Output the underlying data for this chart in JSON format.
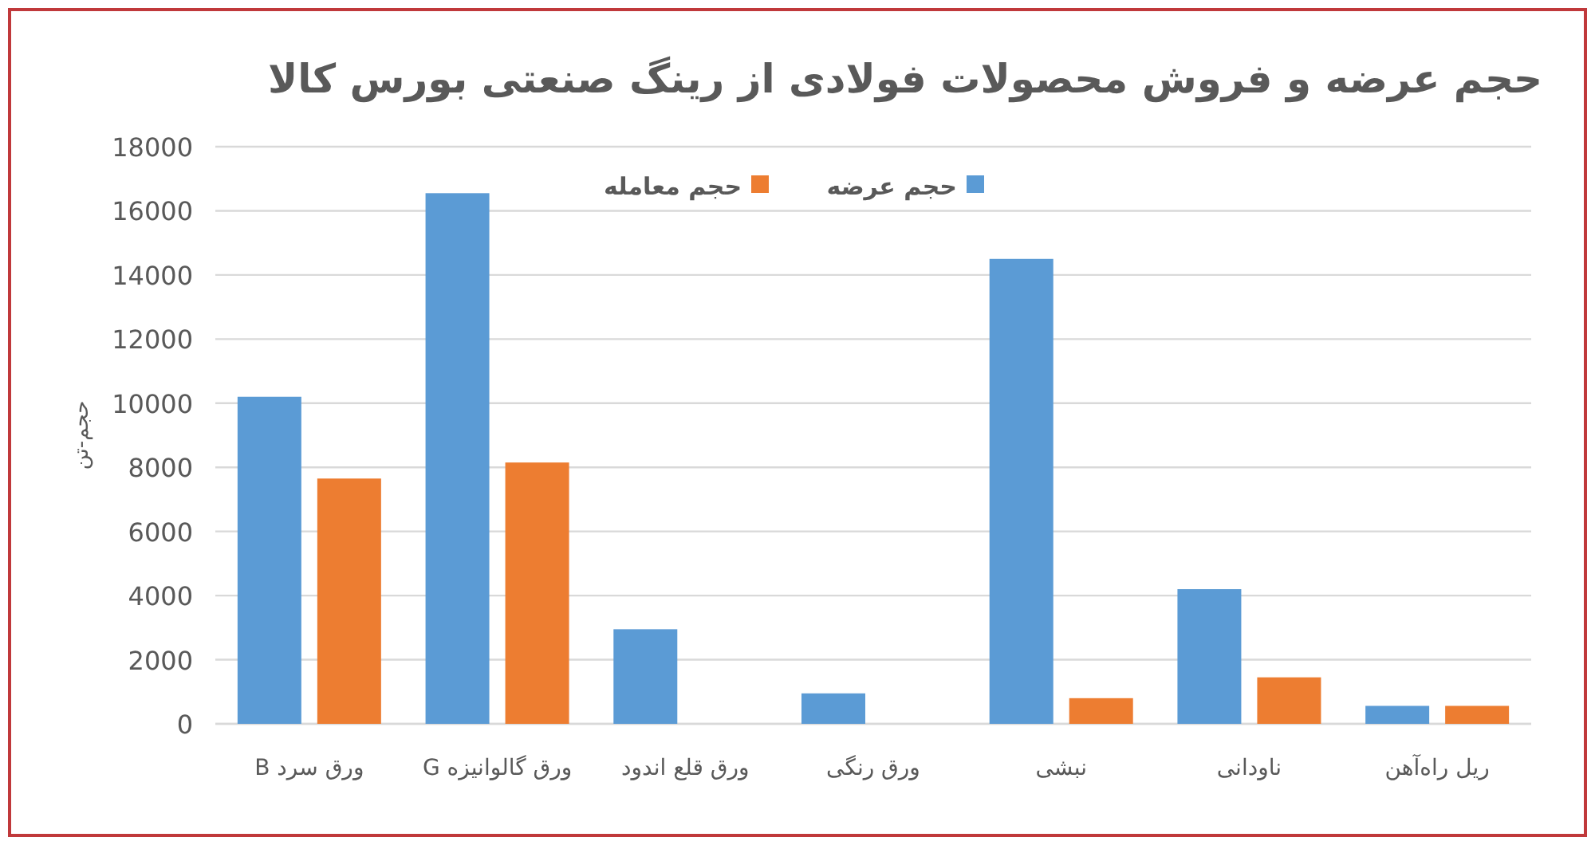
{
  "chart_data": {
    "type": "bar",
    "title": "حجم عرضه و فروش محصولات فولادی از رینگ صنعتی بورس کالا",
    "ylabel": "حجم-تن",
    "categories": [
      "ورق سرد B",
      "ورق گالوانیزه G",
      "ورق قلع اندود",
      "ورق رنگی",
      "نبشی",
      "ناودانی",
      "ریل راه‌آهن"
    ],
    "series": [
      {
        "name": "حجم عرضه",
        "color": "#5b9bd5",
        "values": [
          10200,
          16550,
          2950,
          950,
          14500,
          4200,
          560
        ]
      },
      {
        "name": "حجم معامله",
        "color": "#ed7d31",
        "values": [
          7650,
          8150,
          null,
          null,
          800,
          1450,
          560
        ]
      }
    ],
    "ylim": [
      0,
      18000
    ],
    "yticks": [
      0,
      2000,
      4000,
      6000,
      8000,
      10000,
      12000,
      14000,
      16000,
      18000
    ],
    "grid": "y",
    "legend": "top"
  }
}
